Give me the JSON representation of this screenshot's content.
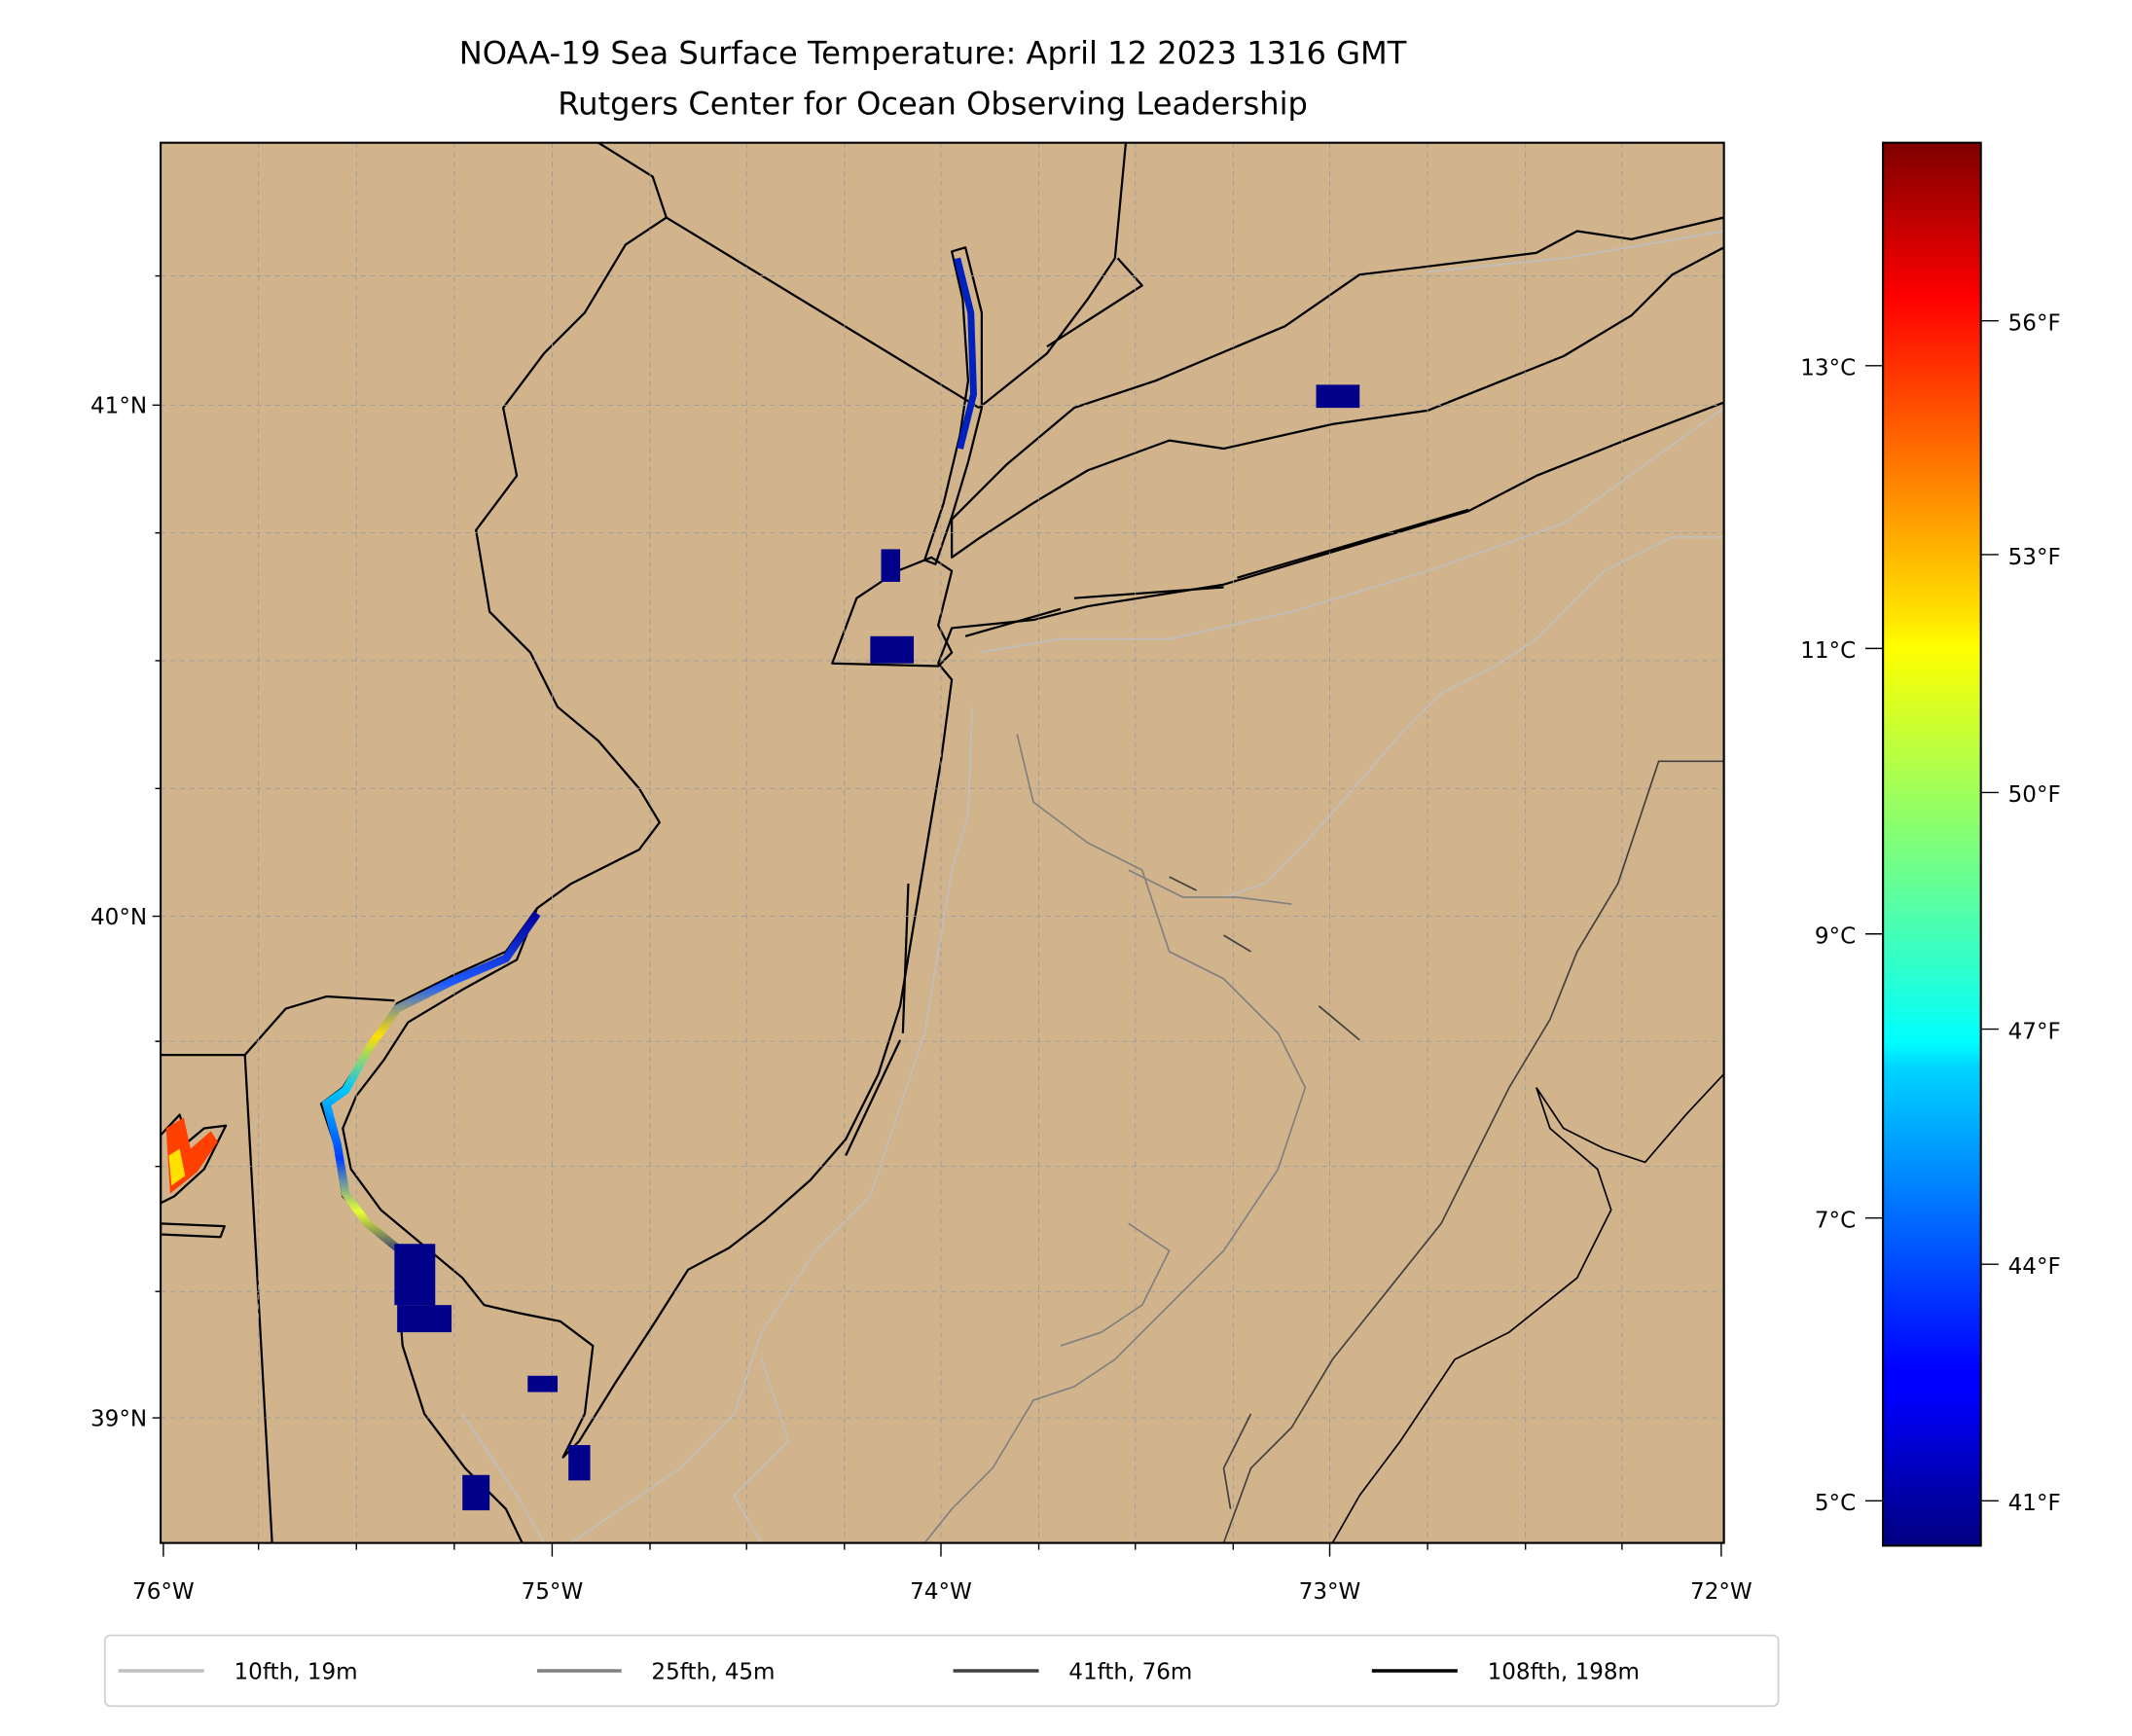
{
  "title": {
    "line1": "NOAA-19 Sea Surface Temperature: April 12 2023 1316 GMT",
    "line2": "Rutgers Center for Ocean Observing Leadership"
  },
  "map": {
    "land_color": "#d2b48c",
    "water_color": "#ffffff",
    "lat_ticks": [
      "41°N",
      "40°N",
      "39°N"
    ],
    "lon_ticks": [
      "76°W",
      "75°W",
      "74°W",
      "73°W",
      "72°W"
    ]
  },
  "colorbar": {
    "colormap": "jet",
    "celsius_ticks": [
      "13°C",
      "11°C",
      "9°C",
      "7°C",
      "5°C"
    ],
    "fahrenheit_ticks": [
      "56°F",
      "53°F",
      "50°F",
      "47°F",
      "44°F",
      "41°F"
    ],
    "range_celsius": [
      4.7,
      14.6
    ]
  },
  "legend": {
    "items": [
      {
        "label": "10fth, 19m",
        "color": "#bfbfbf"
      },
      {
        "label": "25fth, 45m",
        "color": "#808080"
      },
      {
        "label": "41fth, 76m",
        "color": "#404040"
      },
      {
        "label": "108fth, 198m",
        "color": "#000000"
      }
    ]
  }
}
